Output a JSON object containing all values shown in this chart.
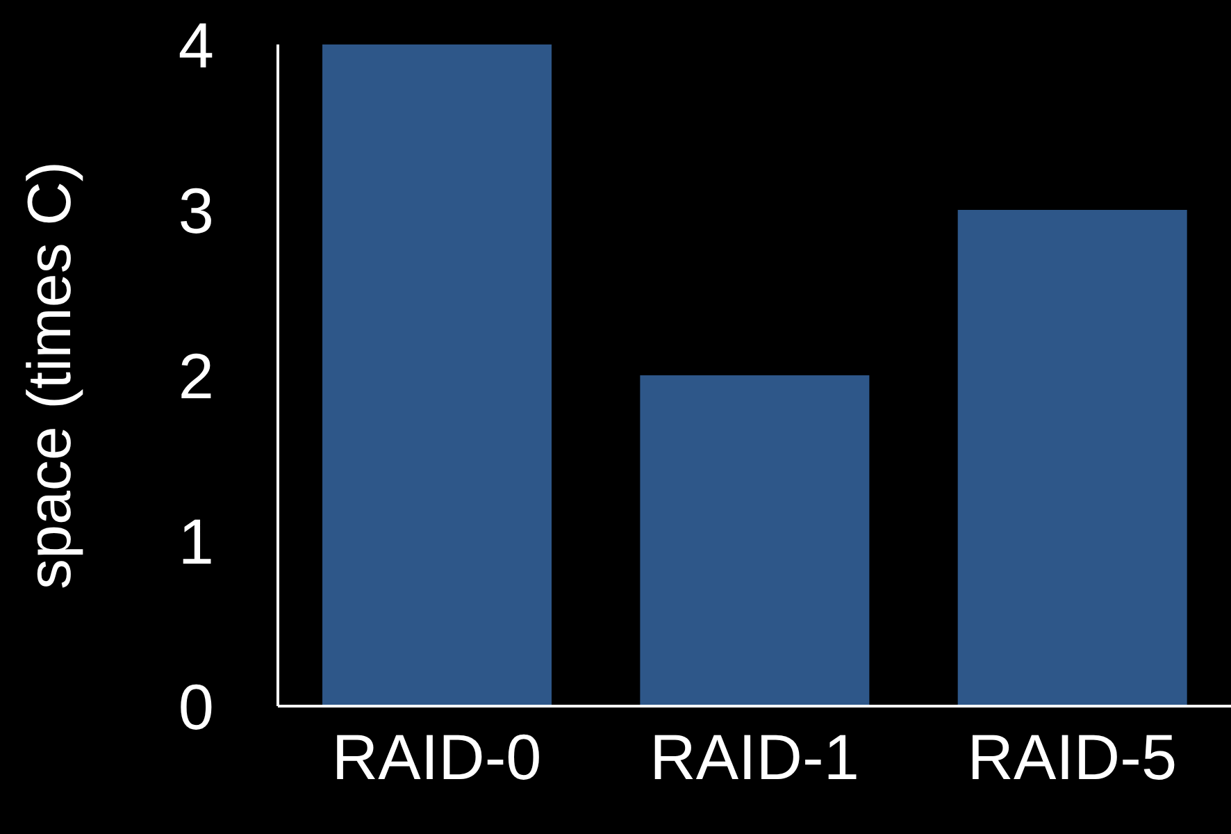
{
  "chart_data": {
    "type": "bar",
    "ylabel": "space (times C)",
    "categories": [
      "RAID-0",
      "RAID-1",
      "RAID-5"
    ],
    "values": [
      4,
      2,
      3
    ],
    "color": "#2e5789",
    "ylim": [
      0,
      4
    ],
    "yticks": [
      0,
      1,
      2,
      3,
      4
    ],
    "grid": false,
    "legend": false
  }
}
